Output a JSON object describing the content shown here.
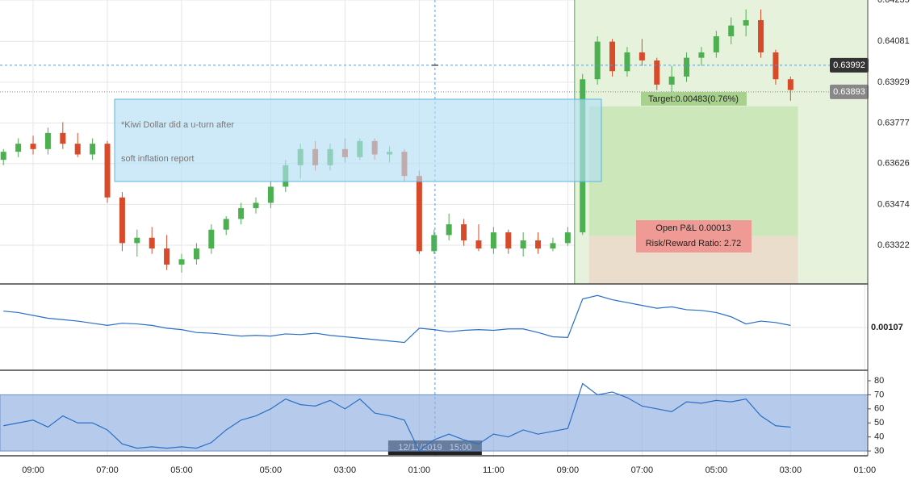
{
  "chart_data": [
    {
      "type": "candlestick",
      "candles": [
        [
          0.6364,
          0.6368,
          0.6362,
          0.6367
        ],
        [
          0.6367,
          0.6372,
          0.6365,
          0.637
        ],
        [
          0.637,
          0.6373,
          0.6366,
          0.6368
        ],
        [
          0.6368,
          0.6376,
          0.6366,
          0.6374
        ],
        [
          0.6374,
          0.6378,
          0.6368,
          0.637
        ],
        [
          0.637,
          0.6374,
          0.6365,
          0.6366
        ],
        [
          0.6366,
          0.6372,
          0.6364,
          0.637
        ],
        [
          0.637,
          0.6371,
          0.6348,
          0.635
        ],
        [
          0.635,
          0.6352,
          0.633,
          0.6333
        ],
        [
          0.6333,
          0.6338,
          0.6328,
          0.6335
        ],
        [
          0.6335,
          0.6339,
          0.6329,
          0.6331
        ],
        [
          0.6331,
          0.6336,
          0.6323,
          0.6325
        ],
        [
          0.6325,
          0.6329,
          0.6322,
          0.6327
        ],
        [
          0.6327,
          0.6333,
          0.6325,
          0.6331
        ],
        [
          0.6331,
          0.634,
          0.6329,
          0.6338
        ],
        [
          0.6338,
          0.6343,
          0.6336,
          0.6342
        ],
        [
          0.6342,
          0.6348,
          0.634,
          0.6346
        ],
        [
          0.6346,
          0.635,
          0.6344,
          0.6348
        ],
        [
          0.6348,
          0.6356,
          0.6346,
          0.6354
        ],
        [
          0.6354,
          0.6364,
          0.6352,
          0.6362
        ],
        [
          0.6362,
          0.637,
          0.6357,
          0.6368
        ],
        [
          0.6368,
          0.6371,
          0.636,
          0.6362
        ],
        [
          0.6362,
          0.637,
          0.636,
          0.6368
        ],
        [
          0.6368,
          0.6372,
          0.6363,
          0.6365
        ],
        [
          0.6365,
          0.6372,
          0.6364,
          0.6371
        ],
        [
          0.6371,
          0.6372,
          0.6364,
          0.6366
        ],
        [
          0.6366,
          0.6369,
          0.6363,
          0.6367
        ],
        [
          0.6367,
          0.6368,
          0.6356,
          0.6358
        ],
        [
          0.6358,
          0.636,
          0.6329,
          0.633
        ],
        [
          0.633,
          0.6338,
          0.6329,
          0.6336
        ],
        [
          0.6336,
          0.6344,
          0.6334,
          0.634
        ],
        [
          0.634,
          0.6342,
          0.6332,
          0.6334
        ],
        [
          0.6334,
          0.634,
          0.633,
          0.6331
        ],
        [
          0.6331,
          0.6339,
          0.6329,
          0.6337
        ],
        [
          0.6337,
          0.6338,
          0.6329,
          0.6331
        ],
        [
          0.6331,
          0.6337,
          0.6328,
          0.6334
        ],
        [
          0.6334,
          0.6337,
          0.6329,
          0.6331
        ],
        [
          0.6331,
          0.6335,
          0.633,
          0.6333
        ],
        [
          0.6333,
          0.6339,
          0.6332,
          0.6337
        ],
        [
          0.6337,
          0.6396,
          0.6336,
          0.6394
        ],
        [
          0.6394,
          0.641,
          0.6392,
          0.6408
        ],
        [
          0.6408,
          0.6409,
          0.6395,
          0.6397
        ],
        [
          0.6397,
          0.6406,
          0.6395,
          0.6404
        ],
        [
          0.6404,
          0.6409,
          0.6399,
          0.6401
        ],
        [
          0.6401,
          0.6402,
          0.639,
          0.6392
        ],
        [
          0.6392,
          0.6399,
          0.6388,
          0.6395
        ],
        [
          0.6395,
          0.6404,
          0.6393,
          0.6402
        ],
        [
          0.6402,
          0.6406,
          0.6399,
          0.6404
        ],
        [
          0.6404,
          0.6412,
          0.6402,
          0.641
        ],
        [
          0.641,
          0.6417,
          0.6407,
          0.6414
        ],
        [
          0.6414,
          0.642,
          0.641,
          0.6416
        ],
        [
          0.6416,
          0.642,
          0.6402,
          0.6404
        ],
        [
          0.6404,
          0.6405,
          0.6392,
          0.6394
        ],
        [
          0.6394,
          0.6395,
          0.6386,
          0.639
        ]
      ],
      "colors": {
        "up": "#4caf50",
        "down": "#d84b2a"
      },
      "xlim": [
        -0.23,
        58.2
      ],
      "xticks": [
        {
          "value": 2,
          "label": "09:00"
        },
        {
          "value": 7,
          "label": "07:00"
        },
        {
          "value": 12,
          "label": "05:00"
        },
        {
          "value": 18,
          "label": "05:00"
        },
        {
          "value": 23,
          "label": "03:00"
        },
        {
          "value": 28,
          "label": "01:00"
        },
        {
          "value": 33,
          "label": "11:00"
        },
        {
          "value": 38,
          "label": "09:00"
        },
        {
          "value": 43,
          "label": "07:00"
        },
        {
          "value": 48,
          "label": "05:00"
        },
        {
          "value": 53,
          "label": "03:00"
        },
        {
          "value": 58,
          "label": "01:00"
        }
      ],
      "ylim": [
        0.63178,
        0.64235
      ],
      "yticks": [
        0.64235,
        0.64081,
        0.63929,
        0.63777,
        0.63626,
        0.63474,
        0.63322
      ],
      "grid": true,
      "crosshair": {
        "x": 29.06,
        "y": 0.63992,
        "label": "12/11/2019   15:00"
      },
      "last_price": 0.63893,
      "highlight_from": 38.46,
      "annotation": "*Kiwi Dollar did a u-turn after soft inflation report",
      "position": {
        "start": 39.44,
        "end": 53.5,
        "entry": 0.63356,
        "target": 0.63839,
        "stop": 0.63178,
        "target_label": "Target:0.00483(0.76%)",
        "pnl_label": "Open P&L 0.00013",
        "rr_label": "Risk/Reward Ratio: 2.72"
      }
    },
    {
      "type": "line",
      "color": "#2a6ec6",
      "values": [
        0.0013,
        0.00128,
        0.00124,
        0.0012,
        0.00118,
        0.00116,
        0.00113,
        0.0011,
        0.00113,
        0.00112,
        0.0011,
        0.00106,
        0.00104,
        0.001,
        0.00099,
        0.00097,
        0.00095,
        0.00096,
        0.00095,
        0.00098,
        0.00097,
        0.00099,
        0.00096,
        0.00094,
        0.00092,
        0.0009,
        0.00088,
        0.00086,
        0.00106,
        0.00104,
        0.00101,
        0.00103,
        0.00104,
        0.00103,
        0.00105,
        0.00105,
        0.001,
        0.00094,
        0.00093,
        0.00147,
        0.00152,
        0.00146,
        0.00142,
        0.00138,
        0.00134,
        0.00136,
        0.00132,
        0.00131,
        0.00128,
        0.00122,
        0.00112,
        0.00116,
        0.00114,
        0.0011
      ],
      "ylim": [
        0.00047,
        0.00167
      ],
      "yticks": [
        0.00107
      ]
    },
    {
      "type": "line",
      "color": "#2a6ec6",
      "band": [
        30,
        70
      ],
      "band_color": "#8fafe0",
      "values": [
        48,
        50,
        52,
        47,
        55,
        50,
        50,
        45,
        35,
        32,
        33,
        32,
        33,
        32,
        36,
        45,
        52,
        55,
        60,
        67,
        63,
        62,
        66,
        60,
        67,
        57,
        55,
        52,
        30,
        38,
        42,
        38,
        35,
        42,
        40,
        45,
        42,
        44,
        46,
        78,
        70,
        72,
        68,
        62,
        60,
        58,
        65,
        64,
        66,
        65,
        67,
        55,
        48,
        47
      ],
      "ylim": [
        26.6,
        86.9
      ],
      "yticks": [
        80,
        70,
        60,
        50,
        40,
        30
      ]
    }
  ]
}
